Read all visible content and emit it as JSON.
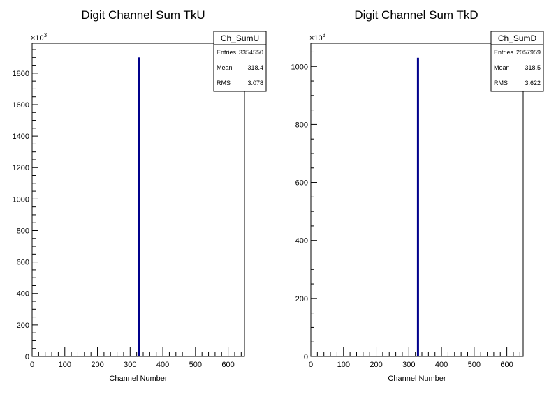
{
  "chart_data": [
    {
      "type": "bar",
      "title": "Digit Channel Sum TkU",
      "xlabel": "Channel Number",
      "ylabel": "",
      "y_multiplier_label": "×10",
      "y_multiplier_exponent": "3",
      "xlim": [
        0,
        650
      ],
      "ylim": [
        0,
        1990
      ],
      "xticks": [
        0,
        100,
        200,
        300,
        400,
        500,
        600
      ],
      "yticks": [
        0,
        200,
        400,
        600,
        800,
        1000,
        1200,
        1400,
        1600,
        1800
      ],
      "bars": [
        {
          "x": 328,
          "value": 1900
        }
      ],
      "bar_color": "#00008b",
      "stats": {
        "name": "Ch_SumU",
        "rows": [
          {
            "label": "Entries",
            "value": "3354550"
          },
          {
            "label": "Mean",
            "value": "318.4"
          },
          {
            "label": "RMS",
            "value": "3.078"
          }
        ]
      }
    },
    {
      "type": "bar",
      "title": "Digit Channel Sum TkD",
      "xlabel": "Channel Number",
      "ylabel": "",
      "y_multiplier_label": "×10",
      "y_multiplier_exponent": "3",
      "xlim": [
        0,
        650
      ],
      "ylim": [
        0,
        1080
      ],
      "xticks": [
        0,
        100,
        200,
        300,
        400,
        500,
        600
      ],
      "yticks": [
        0,
        200,
        400,
        600,
        800,
        1000
      ],
      "bars": [
        {
          "x": 328,
          "value": 1030
        }
      ],
      "bar_color": "#00008b",
      "stats": {
        "name": "Ch_SumD",
        "rows": [
          {
            "label": "Entries",
            "value": "2057959"
          },
          {
            "label": "Mean",
            "value": "318.5"
          },
          {
            "label": "RMS",
            "value": "3.622"
          }
        ]
      }
    }
  ]
}
